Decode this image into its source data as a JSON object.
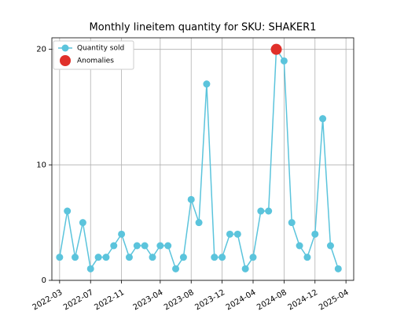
{
  "chart_data": {
    "type": "line",
    "title": "Monthly lineitem quantity for SKU: SHAKER1",
    "x": [
      "2022-03",
      "2022-04",
      "2022-05",
      "2022-06",
      "2022-07",
      "2022-08",
      "2022-09",
      "2022-10",
      "2022-11",
      "2022-12",
      "2023-01",
      "2023-02",
      "2023-03",
      "2023-04",
      "2023-05",
      "2023-06",
      "2023-07",
      "2023-08",
      "2023-09",
      "2023-10",
      "2023-11",
      "2023-12",
      "2024-01",
      "2024-02",
      "2024-03",
      "2024-04",
      "2024-05",
      "2024-06",
      "2024-07",
      "2024-08",
      "2024-09",
      "2024-10",
      "2024-11",
      "2024-12",
      "2025-01",
      "2025-02",
      "2025-03"
    ],
    "series": [
      {
        "name": "Quantity sold",
        "color": "#5bc4dc",
        "values": [
          2,
          6,
          2,
          5,
          1,
          2,
          2,
          3,
          4,
          2,
          3,
          3,
          2,
          3,
          3,
          1,
          2,
          7,
          5,
          17,
          2,
          2,
          4,
          4,
          1,
          2,
          6,
          6,
          20,
          19,
          5,
          3,
          2,
          4,
          14,
          3,
          1
        ]
      },
      {
        "name": "Anomalies",
        "color": "#e0302a",
        "x": [
          "2024-07"
        ],
        "values": [
          20
        ]
      }
    ],
    "xlim": [
      "2022-02",
      "2025-05"
    ],
    "xticks": [
      "2022-03",
      "2022-07",
      "2022-11",
      "2023-04",
      "2023-08",
      "2023-12",
      "2024-04",
      "2024-08",
      "2024-12",
      "2025-04"
    ],
    "ylim": [
      0,
      21
    ],
    "yticks": [
      0,
      10,
      20
    ],
    "grid": true,
    "legend": "upper left"
  }
}
